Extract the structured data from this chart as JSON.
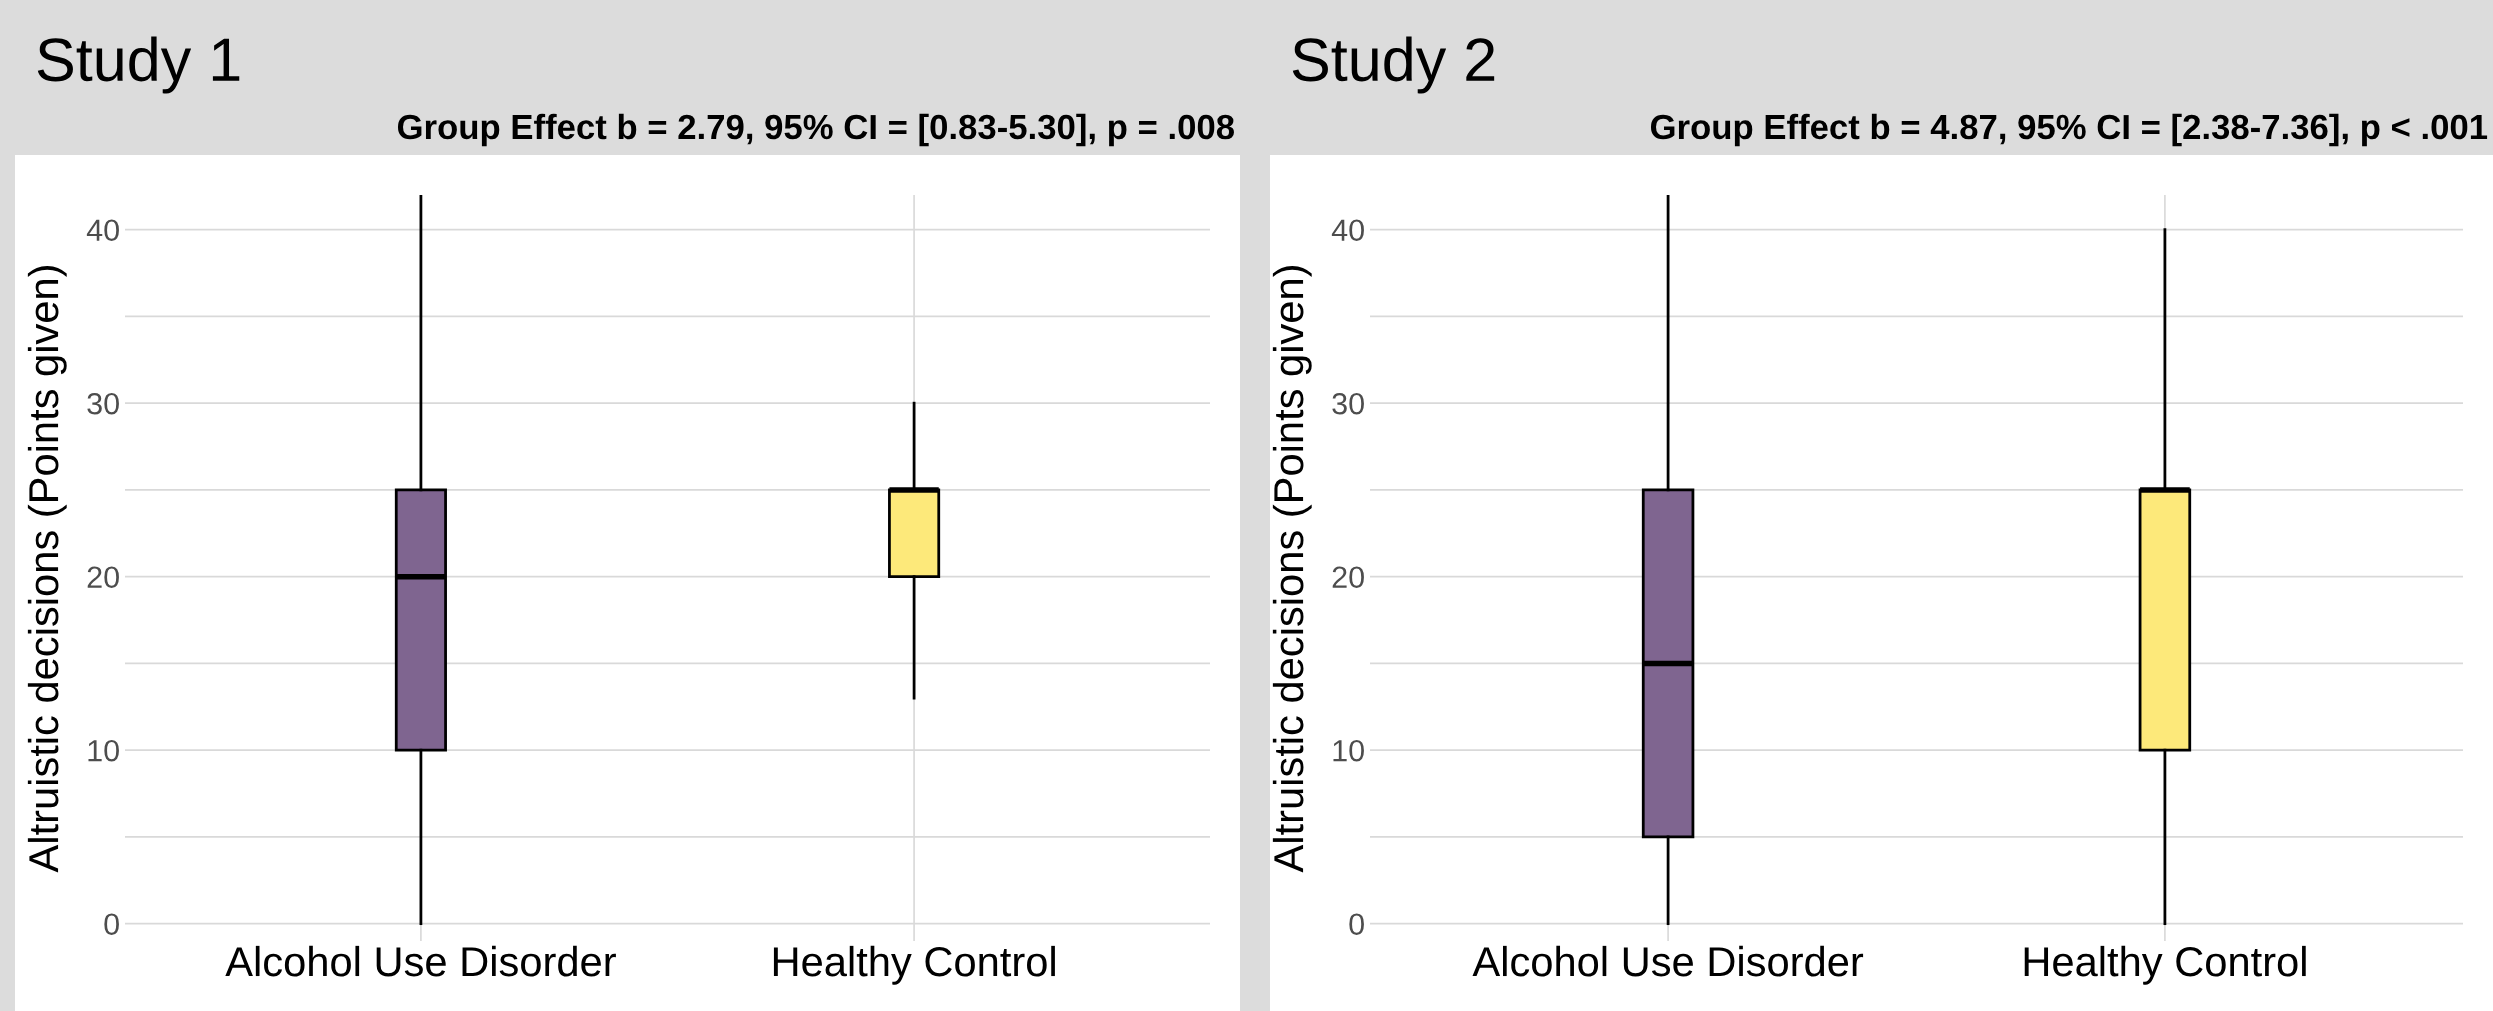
{
  "chart_data": [
    {
      "type": "box",
      "title": "Study 1",
      "subtitle": "Group Effect b = 2.79, 95% CI = [0.83-5.30], p = .008",
      "ylabel": "Altruistic decisions (Points given)",
      "categories": [
        "Alcohol Use Disorder",
        "Healthy Control"
      ],
      "colors": [
        "#7f6590",
        "#fde97a"
      ],
      "boxes": [
        {
          "low": 0,
          "q1": 10,
          "median": 20,
          "q3": 25,
          "high": 42
        },
        {
          "low": 13,
          "q1": 20,
          "median": 25,
          "q3": 25,
          "high": 30
        }
      ],
      "ylim": [
        -1,
        42
      ],
      "yticks": [
        0,
        {
          "value": 5,
          "label": null
        },
        10,
        {
          "value": 15,
          "label": null
        },
        20,
        {
          "value": 25,
          "label": null
        },
        30,
        {
          "value": 35,
          "label": null
        },
        40
      ],
      "grid": true
    },
    {
      "type": "box",
      "title": "Study 2",
      "subtitle": "Group Effect b = 4.87, 95% CI = [2.38-7.36], p < .001",
      "ylabel": "Altruistic decisions (Points given)",
      "categories": [
        "Alcohol Use Disorder",
        "Healthy Control"
      ],
      "colors": [
        "#7f6590",
        "#fde97a"
      ],
      "boxes": [
        {
          "low": 0,
          "q1": 5,
          "median": 15,
          "q3": 25,
          "high": 42
        },
        {
          "low": 0,
          "q1": 10,
          "median": 25,
          "q3": 25,
          "high": 40
        }
      ],
      "ylim": [
        -1,
        42
      ],
      "yticks": [
        0,
        {
          "value": 5,
          "label": null
        },
        10,
        {
          "value": 15,
          "label": null
        },
        20,
        {
          "value": 25,
          "label": null
        },
        30,
        {
          "value": 35,
          "label": null
        },
        40
      ],
      "grid": true
    }
  ]
}
